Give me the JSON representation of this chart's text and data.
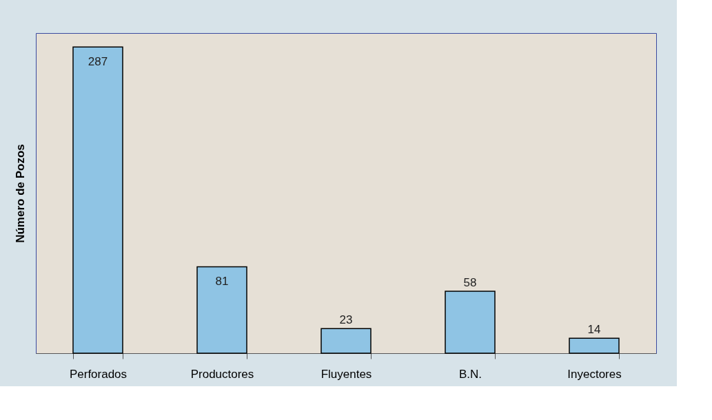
{
  "chart_data": {
    "type": "bar",
    "ylabel": "Número de Pozos",
    "categories": [
      "Perforados",
      "Productores",
      "Fluyentes",
      "B.N.",
      "Inyectores"
    ],
    "values": [
      287,
      81,
      23,
      58,
      14
    ],
    "color": "#8fc4e4",
    "data_labels": true,
    "grid": false,
    "tick_labels": "x"
  }
}
